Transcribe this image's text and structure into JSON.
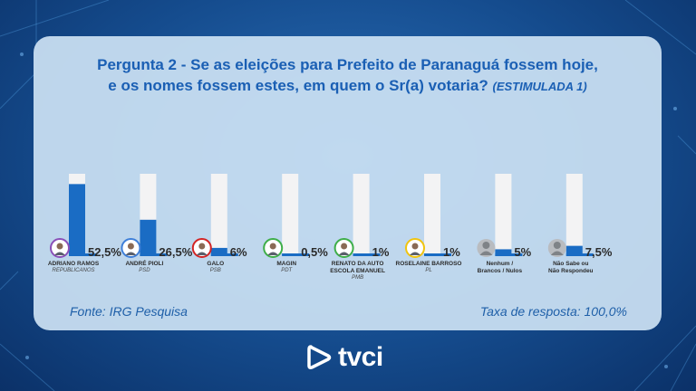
{
  "title": {
    "line1": "Pergunta 2 - Se as eleições para Prefeito de Paranaguá fossem hoje,",
    "line2": "e os nomes fossem estes, em quem o Sr(a) votaria?",
    "tag": "(ESTIMULADA 1)"
  },
  "footer": {
    "source": "Fonte: IRG Pesquisa",
    "response_rate": "Taxa de resposta: 100,0%"
  },
  "brand": {
    "name": "tvci"
  },
  "colors": {
    "bar": "#1a6cc4",
    "track": "#f3f3f4",
    "title": "#1a5fb4"
  },
  "chart_data": {
    "type": "bar",
    "categories": [
      {
        "name": "ADRIANO RAMOS",
        "party": "REPUBLICANOS",
        "value": 52.5,
        "label": "52,5%",
        "avatar": "photo"
      },
      {
        "name": "ANDRÉ PIOLI",
        "party": "PSD",
        "value": 26.5,
        "label": "26,5%",
        "avatar": "photo"
      },
      {
        "name": "GALO",
        "party": "PSB",
        "value": 6,
        "label": "6%",
        "avatar": "photo"
      },
      {
        "name": "MAGIN",
        "party": "PDT",
        "value": 0.5,
        "label": "0,5%",
        "avatar": "photo"
      },
      {
        "name": "RENATO DA AUTO\nESCOLA EMANUEL",
        "party": "PMB",
        "value": 1,
        "label": "1%",
        "avatar": "photo"
      },
      {
        "name": "ROSELAINE BARROSO",
        "party": "PL",
        "value": 1,
        "label": "1%",
        "avatar": "photo"
      },
      {
        "name": "Nenhum /\nBrancos / Nulos",
        "party": "",
        "value": 5,
        "label": "5%",
        "avatar": "generic"
      },
      {
        "name": "Não Sabe ou\nNão Respondeu",
        "party": "",
        "value": 7.5,
        "label": "7,5%",
        "avatar": "generic"
      }
    ],
    "ylim": [
      0,
      60
    ]
  }
}
